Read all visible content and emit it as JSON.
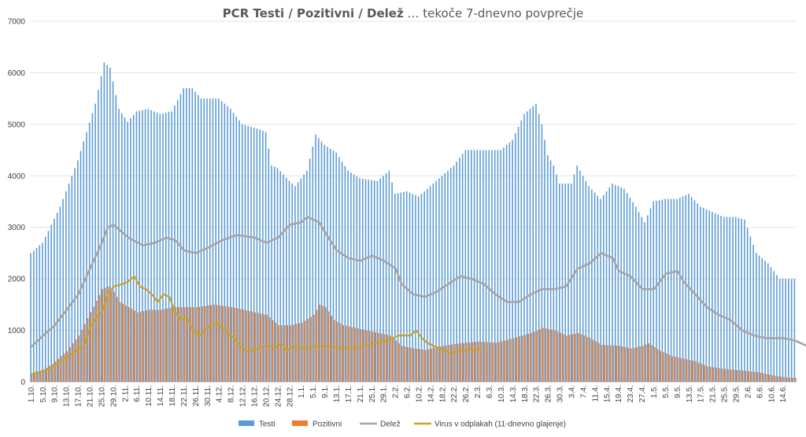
{
  "chart_data": {
    "type": "bar",
    "title": {
      "bold": "PCR Testi / Pozitivni / Delež",
      "normal": " … tekoče 7-dnevno povprečje"
    },
    "ylim": [
      0,
      7000
    ],
    "yticks": [
      0,
      1000,
      2000,
      3000,
      4000,
      5000,
      6000,
      7000
    ],
    "grid": true,
    "legend_position": "bottom",
    "colors": {
      "testi": "#5B9BD5",
      "pozitivni": "#ED7D31",
      "delez": "#A5A5A5",
      "virus": "#C9A227"
    },
    "x_tick_labels": [
      "1.10.",
      "5.10.",
      "9.10.",
      "13.10.",
      "17.10.",
      "21.10.",
      "25.10.",
      "29.10.",
      "2.11.",
      "6.11.",
      "10.11.",
      "14.11.",
      "18.11.",
      "22.11.",
      "26.11.",
      "30.11.",
      "4.12.",
      "8.12.",
      "12.12.",
      "16.12.",
      "20.12.",
      "24.12.",
      "28.12.",
      "1.1.",
      "5.1.",
      "9.1.",
      "13.1.",
      "17.1.",
      "21.1.",
      "25.1.",
      "29.1.",
      "2.2.",
      "6.2.",
      "10.2.",
      "14.2.",
      "18.2.",
      "22.2.",
      "26.2.",
      "2.3.",
      "6.3.",
      "10.3.",
      "14.3.",
      "18.3.",
      "22.3.",
      "26.3.",
      "30.3.",
      "3.4.",
      "7.4.",
      "11.4.",
      "15.4.",
      "19.4.",
      "23.4.",
      "27.4.",
      "1.5.",
      "5.5.",
      "9.5.",
      "13.5.",
      "17.5.",
      "21.5.",
      "25.5.",
      "29.5.",
      "2.6.",
      "6.6.",
      "10.6.",
      "14.6."
    ],
    "series": [
      {
        "name": "Testi",
        "type": "bar",
        "anchors": [
          [
            0,
            2500
          ],
          [
            4,
            2700
          ],
          [
            10,
            3400
          ],
          [
            16,
            4300
          ],
          [
            22,
            5400
          ],
          [
            25,
            6200
          ],
          [
            27,
            6100
          ],
          [
            30,
            5300
          ],
          [
            33,
            5050
          ],
          [
            36,
            5250
          ],
          [
            40,
            5300
          ],
          [
            44,
            5200
          ],
          [
            48,
            5250
          ],
          [
            52,
            5700
          ],
          [
            55,
            5700
          ],
          [
            58,
            5500
          ],
          [
            64,
            5500
          ],
          [
            68,
            5300
          ],
          [
            72,
            5000
          ],
          [
            78,
            4900
          ],
          [
            80,
            4850
          ],
          [
            82,
            4200
          ],
          [
            84,
            4150
          ],
          [
            88,
            3900
          ],
          [
            90,
            3800
          ],
          [
            94,
            4100
          ],
          [
            97,
            4800
          ],
          [
            100,
            4600
          ],
          [
            104,
            4450
          ],
          [
            108,
            4100
          ],
          [
            112,
            3950
          ],
          [
            118,
            3900
          ],
          [
            122,
            4100
          ],
          [
            124,
            3650
          ],
          [
            128,
            3700
          ],
          [
            132,
            3600
          ],
          [
            138,
            3900
          ],
          [
            144,
            4200
          ],
          [
            148,
            4500
          ],
          [
            154,
            4500
          ],
          [
            160,
            4500
          ],
          [
            164,
            4700
          ],
          [
            168,
            5200
          ],
          [
            172,
            5400
          ],
          [
            174,
            5000
          ],
          [
            176,
            4400
          ],
          [
            178,
            4200
          ],
          [
            180,
            3850
          ],
          [
            184,
            3850
          ],
          [
            186,
            4200
          ],
          [
            190,
            3800
          ],
          [
            194,
            3550
          ],
          [
            198,
            3850
          ],
          [
            202,
            3750
          ],
          [
            206,
            3400
          ],
          [
            209,
            3100
          ],
          [
            212,
            3500
          ],
          [
            216,
            3550
          ],
          [
            220,
            3550
          ],
          [
            224,
            3650
          ],
          [
            228,
            3400
          ],
          [
            232,
            3300
          ],
          [
            236,
            3200
          ],
          [
            240,
            3200
          ],
          [
            243,
            3150
          ],
          [
            247,
            2500
          ],
          [
            251,
            2300
          ],
          [
            255,
            2000
          ],
          [
            258,
            2000
          ]
        ]
      },
      {
        "name": "Pozitivni",
        "type": "bar",
        "anchors": [
          [
            0,
            150
          ],
          [
            3,
            200
          ],
          [
            7,
            350
          ],
          [
            12,
            600
          ],
          [
            16,
            900
          ],
          [
            20,
            1350
          ],
          [
            24,
            1800
          ],
          [
            26,
            1850
          ],
          [
            28,
            1750
          ],
          [
            30,
            1550
          ],
          [
            33,
            1450
          ],
          [
            36,
            1350
          ],
          [
            40,
            1400
          ],
          [
            44,
            1400
          ],
          [
            48,
            1450
          ],
          [
            52,
            1450
          ],
          [
            56,
            1450
          ],
          [
            62,
            1500
          ],
          [
            68,
            1450
          ],
          [
            72,
            1400
          ],
          [
            76,
            1350
          ],
          [
            80,
            1300
          ],
          [
            84,
            1100
          ],
          [
            88,
            1100
          ],
          [
            92,
            1150
          ],
          [
            96,
            1300
          ],
          [
            98,
            1500
          ],
          [
            100,
            1450
          ],
          [
            103,
            1200
          ],
          [
            106,
            1100
          ],
          [
            110,
            1050
          ],
          [
            114,
            1000
          ],
          [
            118,
            950
          ],
          [
            122,
            900
          ],
          [
            126,
            700
          ],
          [
            130,
            650
          ],
          [
            134,
            620
          ],
          [
            140,
            700
          ],
          [
            146,
            750
          ],
          [
            152,
            780
          ],
          [
            158,
            760
          ],
          [
            164,
            850
          ],
          [
            170,
            950
          ],
          [
            174,
            1050
          ],
          [
            178,
            1000
          ],
          [
            182,
            900
          ],
          [
            186,
            950
          ],
          [
            190,
            850
          ],
          [
            194,
            720
          ],
          [
            200,
            700
          ],
          [
            204,
            650
          ],
          [
            208,
            700
          ],
          [
            210,
            750
          ],
          [
            214,
            600
          ],
          [
            218,
            500
          ],
          [
            222,
            450
          ],
          [
            226,
            400
          ],
          [
            230,
            300
          ],
          [
            236,
            250
          ],
          [
            242,
            220
          ],
          [
            248,
            180
          ],
          [
            252,
            130
          ],
          [
            255,
            100
          ],
          [
            258,
            80
          ]
        ]
      },
      {
        "name": "Delež",
        "type": "line",
        "anchors": [
          [
            0,
            680
          ],
          [
            4,
            900
          ],
          [
            8,
            1100
          ],
          [
            12,
            1400
          ],
          [
            16,
            1700
          ],
          [
            20,
            2200
          ],
          [
            24,
            2700
          ],
          [
            26,
            3000
          ],
          [
            28,
            3050
          ],
          [
            30,
            2950
          ],
          [
            33,
            2800
          ],
          [
            38,
            2650
          ],
          [
            42,
            2700
          ],
          [
            46,
            2800
          ],
          [
            49,
            2750
          ],
          [
            52,
            2550
          ],
          [
            56,
            2500
          ],
          [
            60,
            2600
          ],
          [
            65,
            2750
          ],
          [
            70,
            2850
          ],
          [
            76,
            2800
          ],
          [
            80,
            2700
          ],
          [
            84,
            2800
          ],
          [
            88,
            3050
          ],
          [
            92,
            3100
          ],
          [
            94,
            3200
          ],
          [
            98,
            3100
          ],
          [
            100,
            2900
          ],
          [
            104,
            2550
          ],
          [
            108,
            2400
          ],
          [
            112,
            2350
          ],
          [
            116,
            2450
          ],
          [
            120,
            2350
          ],
          [
            124,
            2200
          ],
          [
            126,
            1900
          ],
          [
            130,
            1700
          ],
          [
            134,
            1650
          ],
          [
            138,
            1750
          ],
          [
            142,
            1900
          ],
          [
            146,
            2050
          ],
          [
            150,
            2000
          ],
          [
            154,
            1900
          ],
          [
            158,
            1700
          ],
          [
            162,
            1550
          ],
          [
            166,
            1550
          ],
          [
            170,
            1700
          ],
          [
            174,
            1800
          ],
          [
            178,
            1800
          ],
          [
            182,
            1850
          ],
          [
            186,
            2200
          ],
          [
            190,
            2300
          ],
          [
            194,
            2500
          ],
          [
            198,
            2400
          ],
          [
            200,
            2150
          ],
          [
            204,
            2050
          ],
          [
            208,
            1800
          ],
          [
            212,
            1800
          ],
          [
            216,
            2100
          ],
          [
            220,
            2150
          ],
          [
            222,
            1950
          ],
          [
            226,
            1700
          ],
          [
            230,
            1450
          ],
          [
            234,
            1300
          ],
          [
            238,
            1200
          ],
          [
            242,
            1000
          ],
          [
            246,
            900
          ],
          [
            250,
            850
          ],
          [
            256,
            850
          ],
          [
            260,
            800
          ],
          [
            264,
            700
          ],
          [
            268,
            600
          ],
          [
            272,
            500
          ],
          [
            276,
            400
          ]
        ]
      },
      {
        "name": "Virus v odplakah (11-dnevno glajenje)",
        "type": "line",
        "anchors": [
          [
            0,
            150
          ],
          [
            6,
            250
          ],
          [
            10,
            400
          ],
          [
            14,
            550
          ],
          [
            18,
            700
          ],
          [
            20,
            1050
          ],
          [
            22,
            1250
          ],
          [
            24,
            1350
          ],
          [
            26,
            1700
          ],
          [
            28,
            1850
          ],
          [
            31,
            1900
          ],
          [
            33,
            1950
          ],
          [
            35,
            2050
          ],
          [
            37,
            1850
          ],
          [
            39,
            1800
          ],
          [
            41,
            1700
          ],
          [
            43,
            1550
          ],
          [
            45,
            1700
          ],
          [
            47,
            1650
          ],
          [
            49,
            1350
          ],
          [
            51,
            1200
          ],
          [
            53,
            1250
          ],
          [
            55,
            1000
          ],
          [
            57,
            900
          ],
          [
            59,
            1000
          ],
          [
            61,
            1100
          ],
          [
            63,
            1150
          ],
          [
            65,
            1050
          ],
          [
            67,
            950
          ],
          [
            69,
            850
          ],
          [
            71,
            700
          ],
          [
            73,
            600
          ],
          [
            75,
            600
          ],
          [
            77,
            650
          ],
          [
            79,
            700
          ],
          [
            81,
            700
          ],
          [
            83,
            650
          ],
          [
            85,
            750
          ],
          [
            87,
            600
          ],
          [
            89,
            700
          ],
          [
            93,
            650
          ],
          [
            97,
            700
          ],
          [
            101,
            700
          ],
          [
            105,
            650
          ],
          [
            109,
            650
          ],
          [
            113,
            700
          ],
          [
            117,
            750
          ],
          [
            121,
            800
          ],
          [
            125,
            900
          ],
          [
            129,
            900
          ],
          [
            131,
            1000
          ],
          [
            133,
            850
          ],
          [
            135,
            750
          ],
          [
            137,
            700
          ],
          [
            139,
            650
          ],
          [
            141,
            600
          ],
          [
            143,
            550
          ],
          [
            145,
            600
          ],
          [
            147,
            600
          ],
          [
            149,
            650
          ],
          [
            151,
            600
          ],
          [
            153,
            650
          ]
        ]
      }
    ],
    "legend": [
      "Testi",
      "Pozitivni",
      "Delež",
      "Virus v odplakah (11-dnevno glajenje)"
    ]
  }
}
